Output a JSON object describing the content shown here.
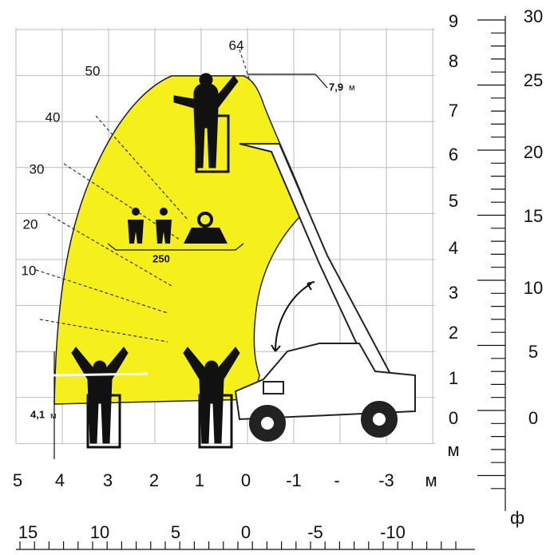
{
  "meter_x_labels": [
    "5",
    "4",
    "3",
    "2",
    "1",
    "0",
    "-1",
    "-",
    "-3",
    "м"
  ],
  "meter_y_labels": [
    "9",
    "8",
    "7",
    "6",
    "5",
    "4",
    "3",
    "2",
    "1",
    "0",
    "м"
  ],
  "feet_y_labels": [
    "30",
    "25",
    "20",
    "15",
    "10",
    "5",
    "0",
    "ф"
  ],
  "feet_x_labels": [
    "15",
    "10",
    "5",
    "0",
    "-5",
    "-10"
  ],
  "angles": [
    "64",
    "50",
    "40",
    "30",
    "20",
    "10"
  ],
  "max_height": {
    "value": "7,9",
    "unit": "м"
  },
  "max_reach": {
    "value": "4,1",
    "unit": "м"
  },
  "load": "250"
}
